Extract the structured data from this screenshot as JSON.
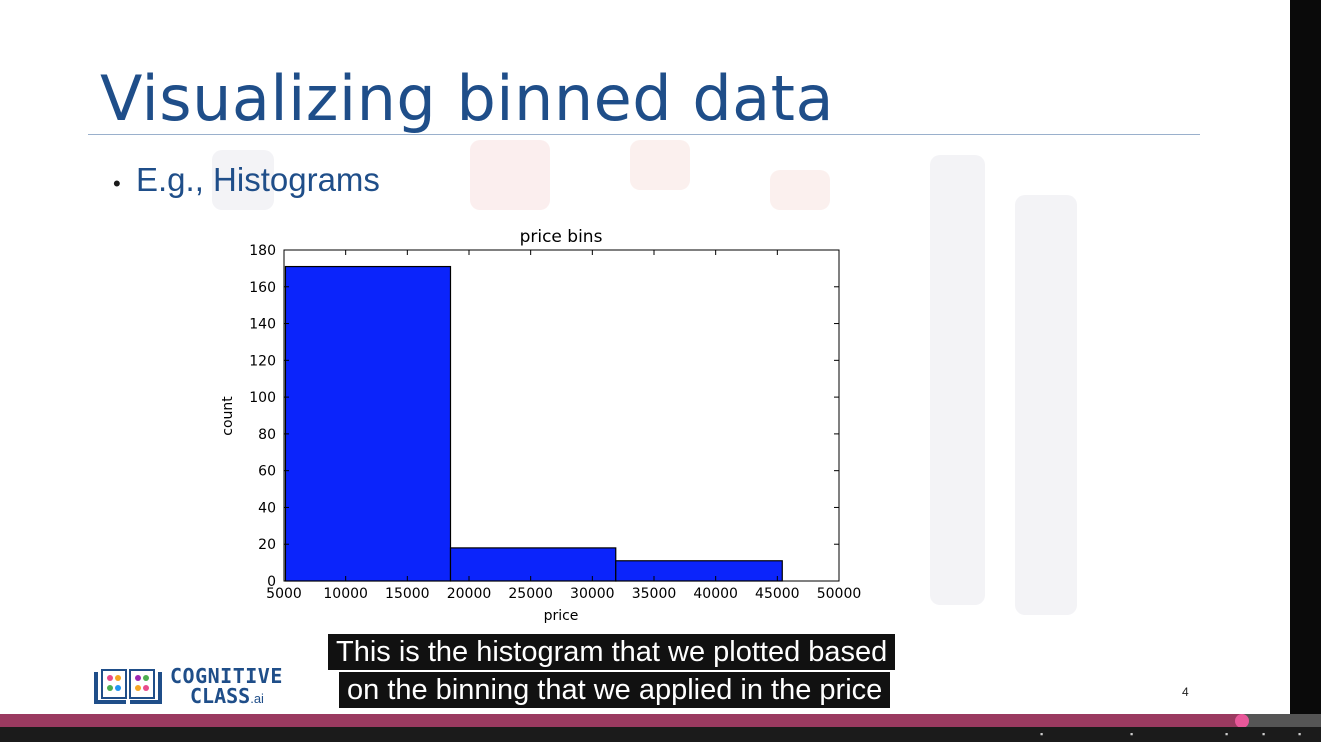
{
  "slide": {
    "title": "Visualizing binned data",
    "bullet": "E.g., Histograms",
    "slide_number": "4"
  },
  "captions": [
    "This is the histogram that we plotted based",
    "on the binning that we applied in the price"
  ],
  "logo": {
    "line1": "COGNITIVE",
    "line2": "CLASS",
    "suffix": ".ai"
  },
  "colors": {
    "title": "#1f4e89",
    "bar": "#0b24fb",
    "progress_played": "#9a3a60",
    "progress_handle": "#e8589a"
  },
  "player": {
    "progress": 0.94
  },
  "chart_data": {
    "type": "bar",
    "title": "price bins",
    "xlabel": "price",
    "ylabel": "count",
    "xlim": [
      5000,
      50000
    ],
    "ylim": [
      0,
      180
    ],
    "xticks": [
      5000,
      10000,
      15000,
      20000,
      25000,
      30000,
      35000,
      40000,
      45000,
      50000
    ],
    "yticks": [
      0,
      20,
      40,
      60,
      80,
      100,
      120,
      140,
      160,
      180
    ],
    "bins": [
      {
        "x0": 5118,
        "x1": 18500,
        "count": 171
      },
      {
        "x0": 18500,
        "x1": 31900,
        "count": 18
      },
      {
        "x0": 31900,
        "x1": 45400,
        "count": 11
      }
    ],
    "grid": false
  }
}
